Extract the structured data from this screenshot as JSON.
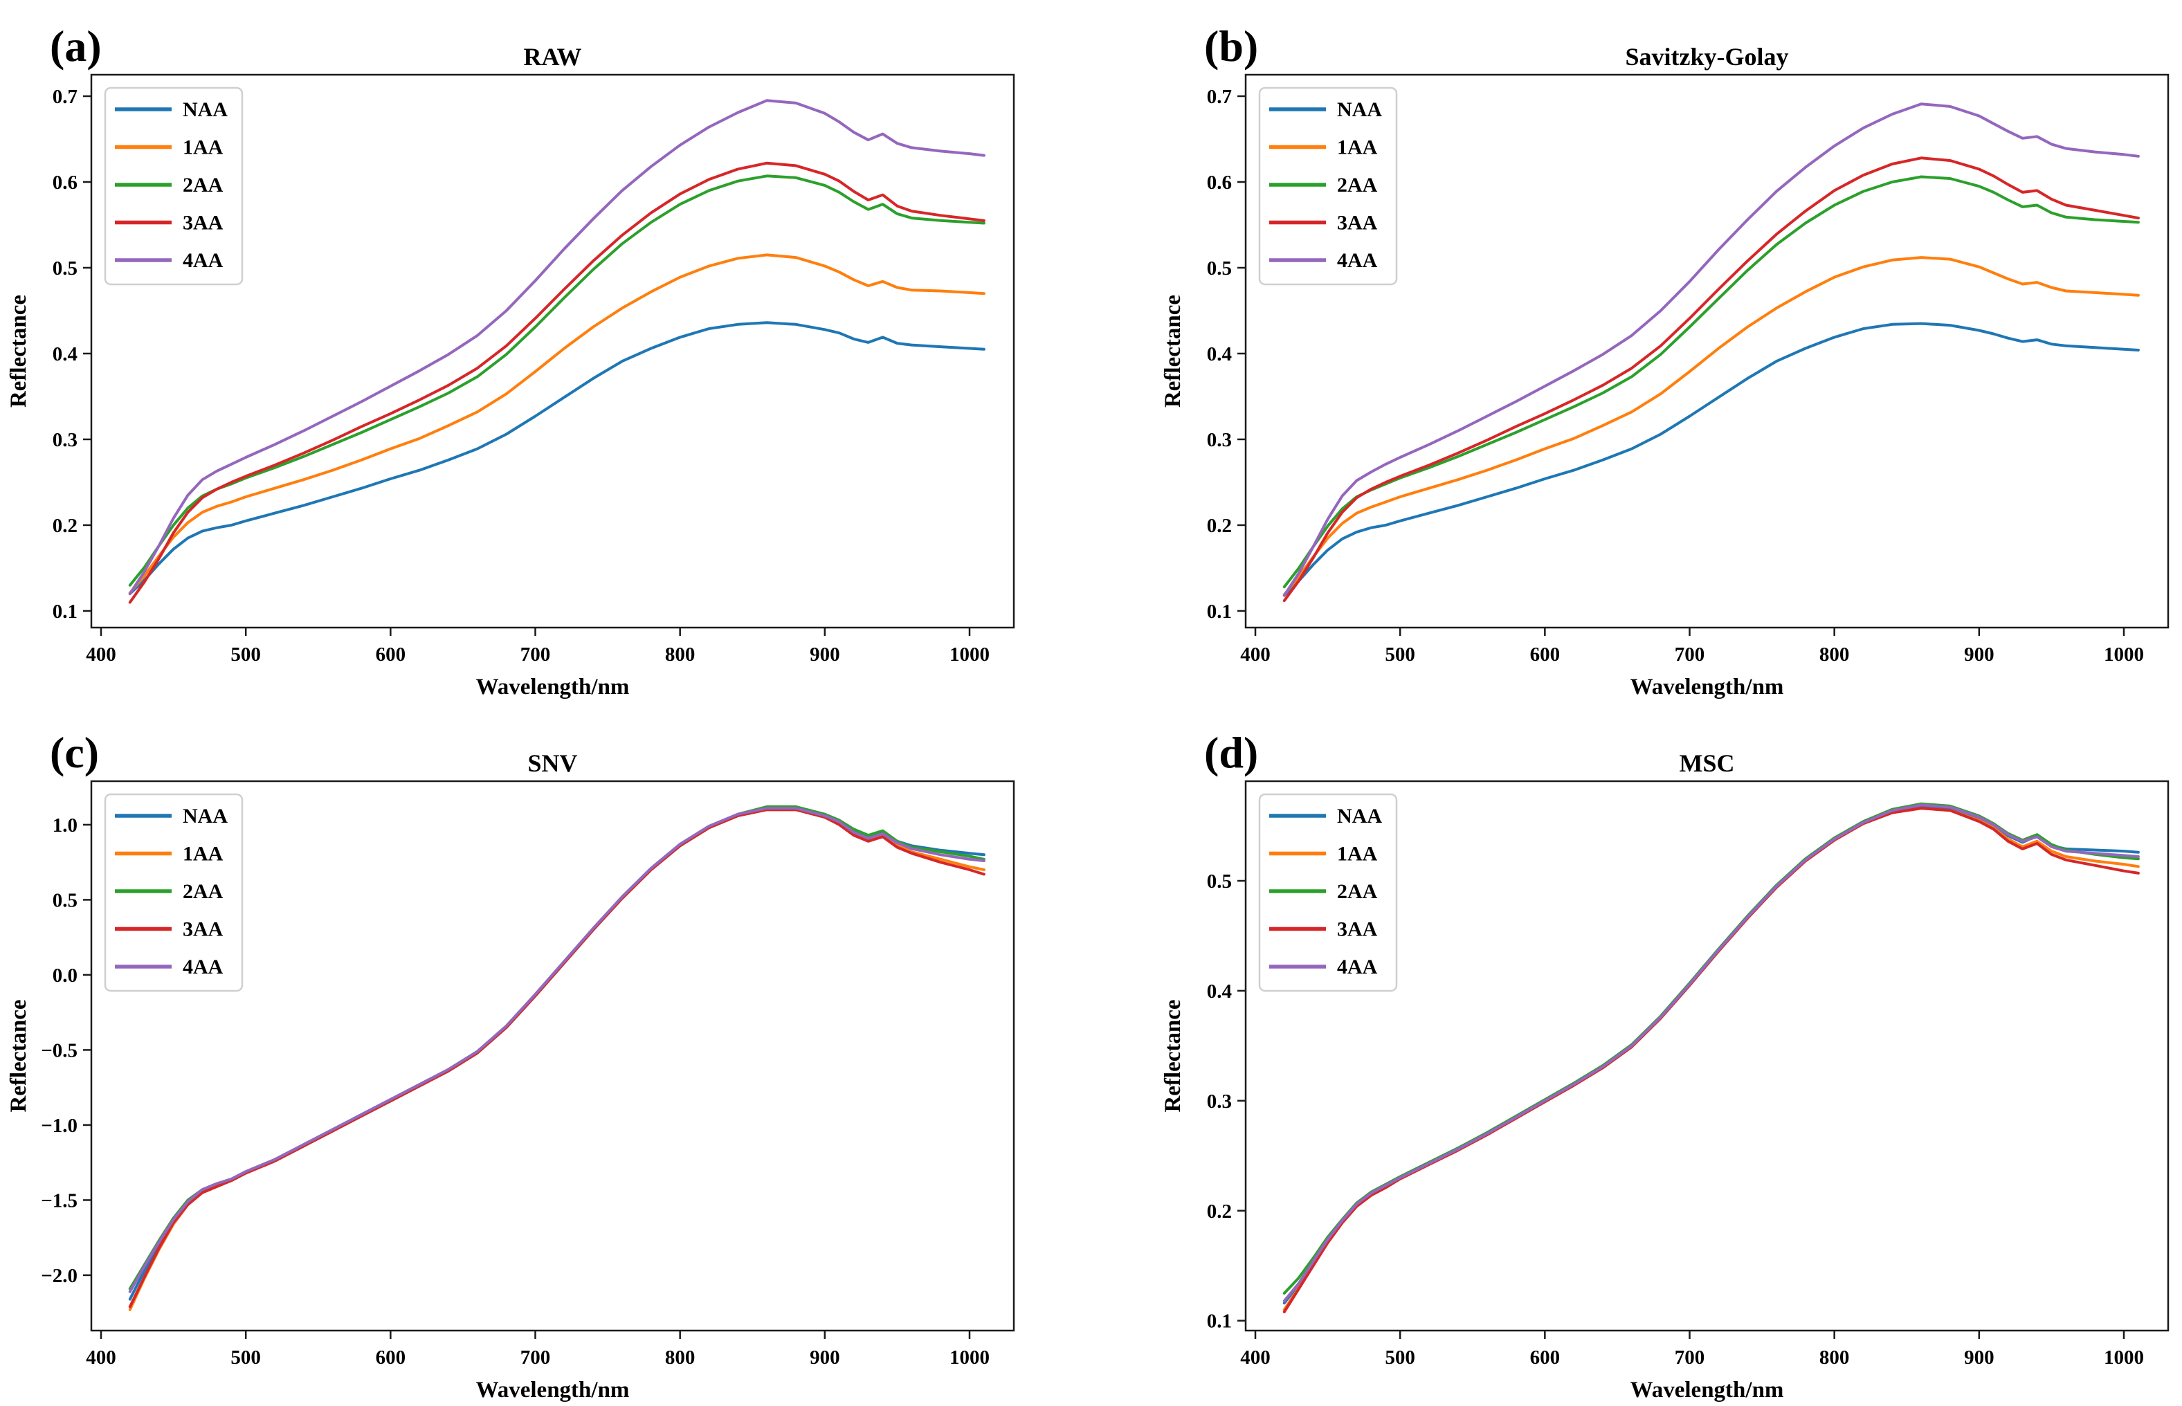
{
  "figure": {
    "background": "#ffffff",
    "spine_color": "#1a1a1a",
    "legend_border_color": "#cfcfcf"
  },
  "chart_data": {
    "type": "line",
    "xlabel": "Wavelength/nm",
    "ylabel": "Reflectance",
    "legend_position": "upper left",
    "grid": false,
    "series_names": [
      "NAA",
      "1AA",
      "2AA",
      "3AA",
      "4AA"
    ],
    "series_colors": [
      "#1f77b4",
      "#ff7f0e",
      "#2ca02c",
      "#d62728",
      "#9467bd"
    ],
    "x": [
      420,
      430,
      440,
      450,
      460,
      470,
      480,
      490,
      500,
      520,
      540,
      560,
      580,
      600,
      620,
      640,
      660,
      680,
      700,
      720,
      740,
      760,
      780,
      800,
      820,
      840,
      860,
      880,
      900,
      910,
      920,
      930,
      940,
      950,
      960,
      980,
      1000,
      1010
    ],
    "xlim": [
      393.3,
      1030.6
    ],
    "xticks": [
      400,
      500,
      600,
      700,
      800,
      900,
      1000
    ],
    "xtick_labels": [
      "400",
      "500",
      "600",
      "700",
      "800",
      "900",
      "1000"
    ],
    "panels": [
      {
        "id": "a",
        "letter": "(a)",
        "title": "RAW",
        "ylim": [
          0.0806,
          0.725
        ],
        "yticks": [
          0.7,
          0.6,
          0.5,
          0.4,
          0.3,
          0.2,
          0.1
        ],
        "ytick_labels": [
          "0.7",
          "0.6",
          "0.5",
          "0.4",
          "0.3",
          "0.2",
          "0.1"
        ],
        "series": [
          [
            0.12,
            0.136,
            0.155,
            0.172,
            0.185,
            0.193,
            0.197,
            0.2,
            0.205,
            0.214,
            0.223,
            0.233,
            0.243,
            0.254,
            0.264,
            0.276,
            0.289,
            0.306,
            0.327,
            0.349,
            0.371,
            0.391,
            0.406,
            0.419,
            0.429,
            0.434,
            0.436,
            0.434,
            0.428,
            0.424,
            0.417,
            0.413,
            0.419,
            0.412,
            0.41,
            0.408,
            0.406,
            0.405
          ],
          [
            0.121,
            0.141,
            0.164,
            0.186,
            0.203,
            0.215,
            0.222,
            0.227,
            0.233,
            0.243,
            0.253,
            0.264,
            0.276,
            0.289,
            0.301,
            0.316,
            0.332,
            0.353,
            0.379,
            0.406,
            0.431,
            0.453,
            0.472,
            0.489,
            0.502,
            0.511,
            0.515,
            0.512,
            0.502,
            0.495,
            0.486,
            0.479,
            0.484,
            0.477,
            0.474,
            0.473,
            0.471,
            0.47
          ],
          [
            0.13,
            0.151,
            0.176,
            0.2,
            0.22,
            0.234,
            0.242,
            0.248,
            0.255,
            0.267,
            0.28,
            0.294,
            0.308,
            0.323,
            0.338,
            0.354,
            0.373,
            0.399,
            0.431,
            0.465,
            0.498,
            0.528,
            0.553,
            0.574,
            0.59,
            0.601,
            0.607,
            0.605,
            0.596,
            0.588,
            0.577,
            0.568,
            0.574,
            0.563,
            0.558,
            0.555,
            0.553,
            0.552
          ],
          [
            0.11,
            0.134,
            0.161,
            0.191,
            0.215,
            0.232,
            0.242,
            0.25,
            0.257,
            0.27,
            0.284,
            0.299,
            0.315,
            0.33,
            0.346,
            0.363,
            0.383,
            0.409,
            0.441,
            0.475,
            0.508,
            0.538,
            0.564,
            0.586,
            0.603,
            0.615,
            0.622,
            0.619,
            0.609,
            0.601,
            0.589,
            0.579,
            0.585,
            0.572,
            0.566,
            0.561,
            0.557,
            0.555
          ],
          [
            0.12,
            0.146,
            0.176,
            0.208,
            0.235,
            0.253,
            0.263,
            0.271,
            0.279,
            0.294,
            0.31,
            0.327,
            0.344,
            0.362,
            0.38,
            0.399,
            0.421,
            0.45,
            0.485,
            0.522,
            0.557,
            0.59,
            0.618,
            0.643,
            0.664,
            0.681,
            0.695,
            0.692,
            0.68,
            0.67,
            0.658,
            0.649,
            0.656,
            0.645,
            0.64,
            0.636,
            0.633,
            0.631
          ]
        ]
      },
      {
        "id": "b",
        "letter": "(b)",
        "title": "Savitzky-Golay",
        "ylim": [
          0.0806,
          0.725
        ],
        "yticks": [
          0.7,
          0.6,
          0.5,
          0.4,
          0.3,
          0.2,
          0.1
        ],
        "ytick_labels": [
          "0.7",
          "0.6",
          "0.5",
          "0.4",
          "0.3",
          "0.2",
          "0.1"
        ],
        "series": [
          [
            0.118,
            0.135,
            0.154,
            0.171,
            0.184,
            0.192,
            0.197,
            0.2,
            0.205,
            0.214,
            0.223,
            0.233,
            0.243,
            0.254,
            0.264,
            0.276,
            0.289,
            0.306,
            0.327,
            0.349,
            0.371,
            0.391,
            0.406,
            0.419,
            0.429,
            0.434,
            0.435,
            0.433,
            0.427,
            0.423,
            0.418,
            0.414,
            0.416,
            0.411,
            0.409,
            0.407,
            0.405,
            0.404
          ],
          [
            0.119,
            0.14,
            0.163,
            0.185,
            0.202,
            0.214,
            0.221,
            0.227,
            0.233,
            0.243,
            0.253,
            0.264,
            0.276,
            0.289,
            0.301,
            0.316,
            0.332,
            0.353,
            0.379,
            0.406,
            0.431,
            0.453,
            0.472,
            0.489,
            0.501,
            0.509,
            0.512,
            0.51,
            0.501,
            0.494,
            0.487,
            0.481,
            0.483,
            0.477,
            0.473,
            0.471,
            0.469,
            0.468
          ],
          [
            0.128,
            0.15,
            0.175,
            0.199,
            0.219,
            0.233,
            0.241,
            0.248,
            0.255,
            0.267,
            0.28,
            0.294,
            0.308,
            0.323,
            0.338,
            0.354,
            0.373,
            0.399,
            0.431,
            0.464,
            0.497,
            0.527,
            0.552,
            0.573,
            0.589,
            0.6,
            0.606,
            0.604,
            0.595,
            0.588,
            0.579,
            0.571,
            0.573,
            0.564,
            0.559,
            0.556,
            0.554,
            0.553
          ],
          [
            0.112,
            0.135,
            0.162,
            0.191,
            0.215,
            0.232,
            0.242,
            0.25,
            0.257,
            0.27,
            0.284,
            0.299,
            0.315,
            0.33,
            0.346,
            0.363,
            0.383,
            0.409,
            0.441,
            0.475,
            0.508,
            0.539,
            0.566,
            0.59,
            0.608,
            0.621,
            0.628,
            0.625,
            0.615,
            0.607,
            0.597,
            0.588,
            0.59,
            0.58,
            0.573,
            0.567,
            0.561,
            0.558
          ],
          [
            0.118,
            0.144,
            0.175,
            0.207,
            0.234,
            0.252,
            0.262,
            0.271,
            0.279,
            0.294,
            0.31,
            0.327,
            0.344,
            0.362,
            0.38,
            0.399,
            0.421,
            0.45,
            0.484,
            0.521,
            0.556,
            0.589,
            0.617,
            0.642,
            0.663,
            0.679,
            0.691,
            0.688,
            0.677,
            0.668,
            0.659,
            0.651,
            0.653,
            0.644,
            0.639,
            0.635,
            0.632,
            0.63
          ]
        ]
      },
      {
        "id": "c",
        "letter": "(c)",
        "title": "SNV",
        "ylim": [
          -2.369,
          1.29
        ],
        "yticks": [
          1.0,
          0.5,
          0.0,
          -0.5,
          -1.0,
          -1.5,
          -2.0
        ],
        "ytick_labels": [
          "1.0",
          "0.5",
          "0.0",
          "−0.5",
          "−1.0",
          "−1.5",
          "−2.0"
        ],
        "series": [
          [
            -2.16,
            -1.97,
            -1.8,
            -1.64,
            -1.52,
            -1.44,
            -1.4,
            -1.37,
            -1.32,
            -1.24,
            -1.14,
            -1.04,
            -0.94,
            -0.84,
            -0.74,
            -0.64,
            -0.52,
            -0.35,
            -0.14,
            0.08,
            0.3,
            0.51,
            0.7,
            0.86,
            0.98,
            1.06,
            1.11,
            1.11,
            1.06,
            1.02,
            0.96,
            0.92,
            0.95,
            0.89,
            0.86,
            0.83,
            0.81,
            0.8
          ],
          [
            -2.23,
            -2.02,
            -1.83,
            -1.66,
            -1.53,
            -1.45,
            -1.41,
            -1.37,
            -1.32,
            -1.24,
            -1.14,
            -1.04,
            -0.94,
            -0.84,
            -0.74,
            -0.64,
            -0.52,
            -0.35,
            -0.14,
            0.08,
            0.3,
            0.51,
            0.7,
            0.86,
            0.98,
            1.06,
            1.1,
            1.1,
            1.05,
            1.01,
            0.94,
            0.9,
            0.93,
            0.86,
            0.82,
            0.77,
            0.72,
            0.7
          ],
          [
            -2.09,
            -1.93,
            -1.77,
            -1.62,
            -1.5,
            -1.43,
            -1.39,
            -1.36,
            -1.31,
            -1.23,
            -1.13,
            -1.03,
            -0.93,
            -0.83,
            -0.73,
            -0.63,
            -0.51,
            -0.34,
            -0.13,
            0.09,
            0.31,
            0.52,
            0.71,
            0.87,
            0.99,
            1.07,
            1.12,
            1.12,
            1.07,
            1.03,
            0.97,
            0.93,
            0.96,
            0.89,
            0.85,
            0.82,
            0.79,
            0.77
          ],
          [
            -2.21,
            -2.01,
            -1.82,
            -1.65,
            -1.53,
            -1.45,
            -1.41,
            -1.37,
            -1.32,
            -1.24,
            -1.14,
            -1.04,
            -0.94,
            -0.84,
            -0.74,
            -0.64,
            -0.52,
            -0.35,
            -0.14,
            0.08,
            0.3,
            0.51,
            0.7,
            0.86,
            0.98,
            1.06,
            1.1,
            1.1,
            1.05,
            1.0,
            0.93,
            0.89,
            0.92,
            0.85,
            0.81,
            0.75,
            0.7,
            0.67
          ],
          [
            -2.11,
            -1.94,
            -1.78,
            -1.63,
            -1.51,
            -1.43,
            -1.39,
            -1.36,
            -1.31,
            -1.23,
            -1.13,
            -1.03,
            -0.93,
            -0.83,
            -0.73,
            -0.63,
            -0.51,
            -0.34,
            -0.13,
            0.09,
            0.31,
            0.52,
            0.71,
            0.87,
            0.99,
            1.07,
            1.11,
            1.11,
            1.06,
            1.02,
            0.95,
            0.91,
            0.94,
            0.88,
            0.84,
            0.8,
            0.77,
            0.76
          ]
        ]
      },
      {
        "id": "d",
        "letter": "(d)",
        "title": "MSC",
        "ylim": [
          0.091,
          0.5906
        ],
        "yticks": [
          0.5,
          0.4,
          0.3,
          0.2,
          0.1
        ],
        "ytick_labels": [
          "0.5",
          "0.4",
          "0.3",
          "0.2",
          "0.1"
        ],
        "series": [
          [
            0.116,
            0.133,
            0.153,
            0.173,
            0.19,
            0.205,
            0.215,
            0.222,
            0.23,
            0.243,
            0.256,
            0.27,
            0.285,
            0.3,
            0.315,
            0.331,
            0.35,
            0.376,
            0.406,
            0.437,
            0.467,
            0.495,
            0.519,
            0.538,
            0.553,
            0.564,
            0.568,
            0.566,
            0.557,
            0.55,
            0.541,
            0.535,
            0.541,
            0.532,
            0.529,
            0.528,
            0.527,
            0.526
          ],
          [
            0.11,
            0.13,
            0.151,
            0.171,
            0.189,
            0.204,
            0.214,
            0.221,
            0.229,
            0.242,
            0.255,
            0.269,
            0.284,
            0.299,
            0.314,
            0.33,
            0.349,
            0.375,
            0.405,
            0.436,
            0.466,
            0.494,
            0.518,
            0.537,
            0.552,
            0.562,
            0.566,
            0.564,
            0.555,
            0.548,
            0.538,
            0.531,
            0.536,
            0.527,
            0.522,
            0.518,
            0.515,
            0.513
          ],
          [
            0.125,
            0.139,
            0.157,
            0.176,
            0.192,
            0.207,
            0.217,
            0.224,
            0.231,
            0.244,
            0.257,
            0.271,
            0.286,
            0.301,
            0.316,
            0.332,
            0.351,
            0.377,
            0.407,
            0.438,
            0.468,
            0.496,
            0.52,
            0.539,
            0.554,
            0.565,
            0.57,
            0.568,
            0.559,
            0.552,
            0.543,
            0.537,
            0.542,
            0.533,
            0.528,
            0.524,
            0.521,
            0.52
          ],
          [
            0.108,
            0.129,
            0.15,
            0.171,
            0.189,
            0.204,
            0.214,
            0.221,
            0.229,
            0.242,
            0.255,
            0.269,
            0.284,
            0.299,
            0.314,
            0.33,
            0.349,
            0.375,
            0.405,
            0.436,
            0.466,
            0.494,
            0.518,
            0.537,
            0.552,
            0.562,
            0.566,
            0.564,
            0.554,
            0.547,
            0.536,
            0.529,
            0.534,
            0.524,
            0.519,
            0.514,
            0.509,
            0.507
          ],
          [
            0.118,
            0.134,
            0.154,
            0.174,
            0.191,
            0.206,
            0.216,
            0.223,
            0.23,
            0.243,
            0.256,
            0.27,
            0.285,
            0.3,
            0.315,
            0.331,
            0.35,
            0.376,
            0.406,
            0.437,
            0.467,
            0.495,
            0.519,
            0.538,
            0.553,
            0.564,
            0.569,
            0.567,
            0.558,
            0.551,
            0.542,
            0.536,
            0.54,
            0.531,
            0.527,
            0.525,
            0.523,
            0.522
          ]
        ]
      }
    ]
  }
}
